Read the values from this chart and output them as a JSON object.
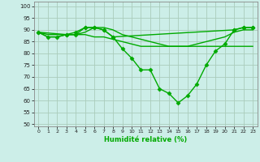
{
  "background_color": "#cceee8",
  "grid_color": "#aaccbb",
  "line_color": "#00aa00",
  "xlabel": "Humidité relative (%)",
  "xlim": [
    -0.5,
    23.5
  ],
  "ylim": [
    49,
    102
  ],
  "yticks": [
    50,
    55,
    60,
    65,
    70,
    75,
    80,
    85,
    90,
    95,
    100
  ],
  "xticks": [
    0,
    1,
    2,
    3,
    4,
    5,
    6,
    7,
    8,
    9,
    10,
    11,
    12,
    13,
    14,
    15,
    16,
    17,
    18,
    19,
    20,
    21,
    22,
    23
  ],
  "series": [
    {
      "x": [
        0,
        1,
        2,
        3,
        4,
        5,
        6,
        7,
        8,
        9,
        10,
        11,
        12,
        13,
        14,
        15,
        16,
        17,
        18,
        19,
        20,
        21,
        22,
        23
      ],
      "y": [
        89,
        87,
        87,
        88,
        89,
        91,
        91,
        90,
        87,
        82,
        78,
        73,
        73,
        65,
        63,
        59,
        62,
        67,
        75,
        81,
        84,
        90,
        91,
        91
      ],
      "marker": "D",
      "markersize": 2.5,
      "linewidth": 1.0
    },
    {
      "x": [
        0,
        1,
        2,
        3,
        4,
        5,
        6,
        7,
        8,
        9,
        10,
        11,
        12,
        13,
        14,
        15,
        16,
        17,
        18,
        19,
        20,
        21,
        22,
        23
      ],
      "y": [
        89,
        88,
        88,
        88,
        88,
        89,
        91,
        91,
        90,
        88,
        87,
        86,
        85,
        84,
        83,
        83,
        83,
        84,
        85,
        86,
        87,
        89,
        90,
        90
      ],
      "marker": null,
      "markersize": 0,
      "linewidth": 1.0
    },
    {
      "x": [
        0,
        1,
        2,
        3,
        4,
        5,
        6,
        7,
        8,
        9,
        10,
        11,
        12,
        13,
        14,
        15,
        16,
        17,
        18,
        19,
        20,
        21,
        22,
        23
      ],
      "y": [
        89,
        87,
        87,
        88,
        88,
        88,
        87,
        87,
        86,
        85,
        84,
        83,
        83,
        83,
        83,
        83,
        83,
        83,
        83,
        83,
        83,
        83,
        83,
        83
      ],
      "marker": null,
      "markersize": 0,
      "linewidth": 1.0
    },
    {
      "x": [
        0,
        3,
        4,
        5,
        6,
        7,
        8,
        21,
        22,
        23
      ],
      "y": [
        89,
        88,
        88,
        91,
        91,
        90,
        87,
        90,
        91,
        91
      ],
      "marker": "D",
      "markersize": 2.5,
      "linewidth": 1.0
    }
  ]
}
